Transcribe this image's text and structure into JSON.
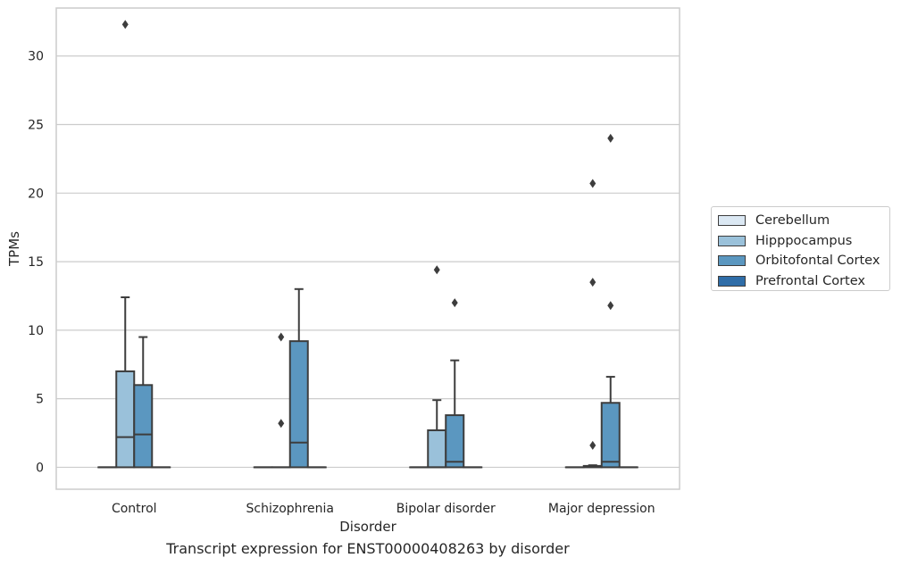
{
  "chart_data": {
    "type": "box",
    "title": "",
    "caption": "Transcript expression for ENST00000408263 by disorder",
    "xlabel": "Disorder",
    "ylabel": "TPMs",
    "ylim": [
      -1.6,
      33.5
    ],
    "yticks": [
      0,
      5,
      10,
      15,
      20,
      25,
      30
    ],
    "grid": true,
    "legend_position": "right",
    "categories": [
      "Control",
      "Schizophrenia",
      "Bipolar disorder",
      "Major depression"
    ],
    "series": [
      {
        "name": "Cerebellum",
        "color": "#dbe8f3",
        "boxes": [
          {
            "q1": 0,
            "median": 0,
            "q3": 0,
            "whisker_low": 0,
            "whisker_high": 0,
            "outliers": []
          },
          {
            "q1": 0,
            "median": 0,
            "q3": 0,
            "whisker_low": 0,
            "whisker_high": 0,
            "outliers": []
          },
          {
            "q1": 0,
            "median": 0,
            "q3": 0,
            "whisker_low": 0,
            "whisker_high": 0,
            "outliers": []
          },
          {
            "q1": 0,
            "median": 0,
            "q3": 0,
            "whisker_low": 0,
            "whisker_high": 0,
            "outliers": []
          }
        ]
      },
      {
        "name": "Hipppocampus",
        "color": "#9ac1da",
        "boxes": [
          {
            "q1": 0,
            "median": 2.2,
            "q3": 7.0,
            "whisker_low": 0,
            "whisker_high": 12.4,
            "outliers": [
              32.3
            ]
          },
          {
            "q1": 0,
            "median": 0,
            "q3": 0,
            "whisker_low": 0,
            "whisker_high": 0,
            "outliers": [
              9.5,
              3.2
            ]
          },
          {
            "q1": 0,
            "median": 0,
            "q3": 2.7,
            "whisker_low": 0,
            "whisker_high": 4.9,
            "outliers": [
              14.4
            ]
          },
          {
            "q1": 0,
            "median": 0.05,
            "q3": 0.1,
            "whisker_low": 0,
            "whisker_high": 0.15,
            "outliers": [
              20.7,
              13.5,
              1.6
            ]
          }
        ]
      },
      {
        "name": "Orbitofontal Cortex",
        "color": "#5b97c0",
        "boxes": [
          {
            "q1": 0,
            "median": 2.4,
            "q3": 6.0,
            "whisker_low": 0,
            "whisker_high": 9.5,
            "outliers": []
          },
          {
            "q1": 0,
            "median": 1.8,
            "q3": 9.2,
            "whisker_low": 0,
            "whisker_high": 13.0,
            "outliers": []
          },
          {
            "q1": 0,
            "median": 0.4,
            "q3": 3.8,
            "whisker_low": 0,
            "whisker_high": 7.8,
            "outliers": [
              12.0
            ]
          },
          {
            "q1": 0,
            "median": 0.4,
            "q3": 4.7,
            "whisker_low": 0,
            "whisker_high": 6.6,
            "outliers": [
              24.0,
              11.8
            ]
          }
        ]
      },
      {
        "name": "Prefrontal Cortex",
        "color": "#2f6da8",
        "boxes": [
          {
            "q1": 0,
            "median": 0,
            "q3": 0,
            "whisker_low": 0,
            "whisker_high": 0,
            "outliers": []
          },
          {
            "q1": 0,
            "median": 0,
            "q3": 0,
            "whisker_low": 0,
            "whisker_high": 0,
            "outliers": []
          },
          {
            "q1": 0,
            "median": 0,
            "q3": 0,
            "whisker_low": 0,
            "whisker_high": 0,
            "outliers": []
          },
          {
            "q1": 0,
            "median": 0,
            "q3": 0,
            "whisker_low": 0,
            "whisker_high": 0,
            "outliers": []
          }
        ]
      }
    ]
  }
}
